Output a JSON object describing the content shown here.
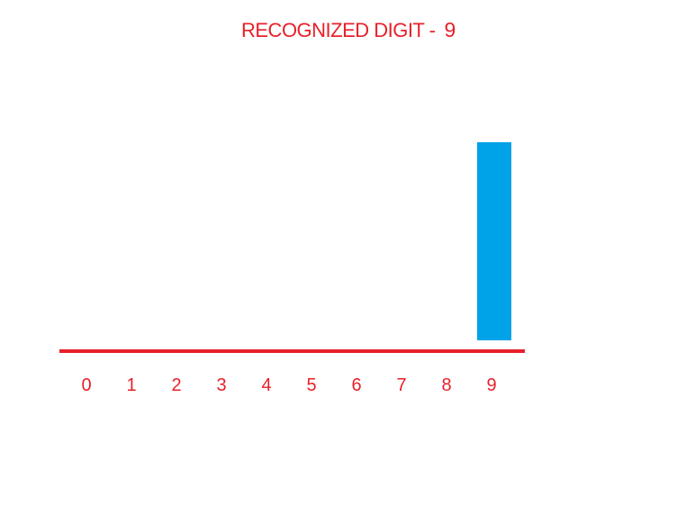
{
  "title": {
    "label": "RECOGNIZED DIGIT -",
    "digit": "9"
  },
  "colors": {
    "text": "#e8202a",
    "axis": "#e8202a",
    "bar": "#00a2e8",
    "background": "#ffffff"
  },
  "chart_data": {
    "type": "bar",
    "title": "RECOGNIZED DIGIT - 9",
    "categories": [
      "0",
      "1",
      "2",
      "3",
      "4",
      "5",
      "6",
      "7",
      "8",
      "9"
    ],
    "values": [
      0,
      0,
      0,
      0,
      0,
      0,
      0,
      0,
      0,
      1
    ],
    "ylim": [
      0,
      1
    ],
    "xlabel": "",
    "ylabel": "",
    "grid": false,
    "legend": "none"
  }
}
